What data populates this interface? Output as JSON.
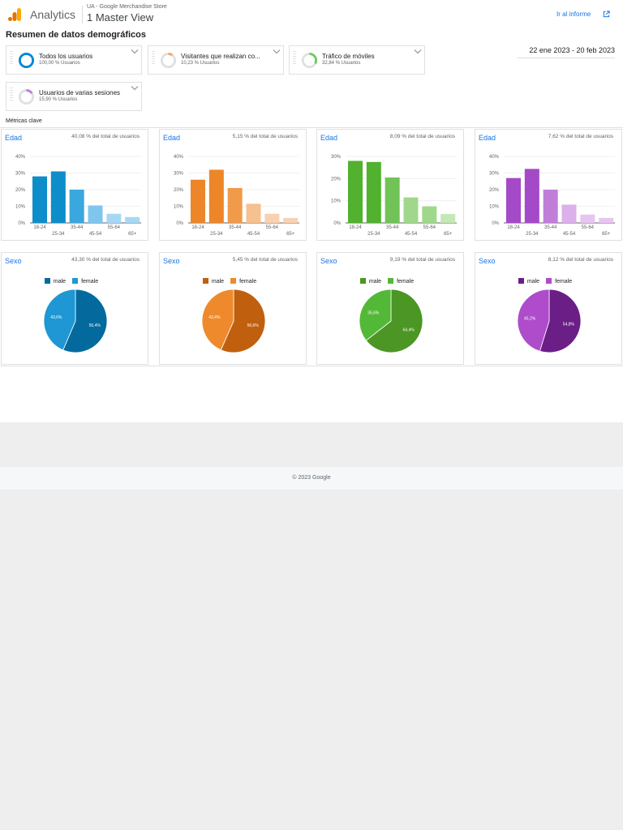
{
  "header": {
    "brand": "Analytics",
    "account": "UA - Google Merchandise Store",
    "view": "1 Master View",
    "report_link": "Ir al informe",
    "logo_icon": "analytics-logo-icon",
    "external_icon": "open-in-new-icon"
  },
  "page": {
    "title": "Resumen de datos demográficos",
    "date_range": "22 ene 2023 - 20 feb 2023",
    "metrics_label": "Métricas clave"
  },
  "segments": [
    {
      "name": "Todos los usuarios",
      "sub": "100,00 % Usuarios",
      "color": "#0288d1",
      "fraction": 1.0
    },
    {
      "name": "Visitantes que realizan co...",
      "sub": "10,23 % Usuarios",
      "color": "#f6a55c",
      "fraction": 0.1023
    },
    {
      "name": "Tráfico de móviles",
      "sub": "32,84 % Usuarios",
      "color": "#6ccb5f",
      "fraction": 0.3284
    },
    {
      "name": "Usuarios de varias sesiones",
      "sub": "15,90 % Usuarios",
      "color": "#c27ae0",
      "fraction": 0.159
    }
  ],
  "age_cards": [
    {
      "title": "Edad",
      "pct": "40,08 % del total de usuarios"
    },
    {
      "title": "Edad",
      "pct": "5,15 % del total de usuarios"
    },
    {
      "title": "Edad",
      "pct": "8,09 % del total de usuarios"
    },
    {
      "title": "Edad",
      "pct": "7,62 % del total de usuarios"
    }
  ],
  "sex_cards": [
    {
      "title": "Sexo",
      "pct": "43,30 % del total de usuarios"
    },
    {
      "title": "Sexo",
      "pct": "5,45 % del total de usuarios"
    },
    {
      "title": "Sexo",
      "pct": "9,19 % del total de usuarios"
    },
    {
      "title": "Sexo",
      "pct": "8,12 % del total de usuarios"
    }
  ],
  "legend_labels": {
    "male": "male",
    "female": "female"
  },
  "footer": {
    "copyright": "© 2023 Google"
  },
  "chart_data": [
    {
      "type": "bar",
      "title": "Edad",
      "categories": [
        "18-24",
        "25-34",
        "35-44",
        "45-54",
        "55-64",
        "65+"
      ],
      "values": [
        28,
        31,
        20,
        10.5,
        5.5,
        3.5
      ],
      "yticks": [
        "0%",
        "10%",
        "20%",
        "30%",
        "40%"
      ],
      "ylim": [
        0,
        40
      ],
      "colors": [
        "#0d8dc9",
        "#0d8dc9",
        "#3aa7de",
        "#7ec6ee",
        "#a6d8f4",
        "#a6d8f4"
      ]
    },
    {
      "type": "bar",
      "title": "Edad",
      "categories": [
        "18-24",
        "25-34",
        "35-44",
        "45-54",
        "55-64",
        "65+"
      ],
      "values": [
        26,
        32,
        21,
        11.5,
        5.5,
        3
      ],
      "yticks": [
        "0%",
        "10%",
        "20%",
        "30%",
        "40%"
      ],
      "ylim": [
        0,
        40
      ],
      "colors": [
        "#ed8628",
        "#ed8628",
        "#f19a4a",
        "#f6c08f",
        "#f8d2b0",
        "#f8d2b0"
      ]
    },
    {
      "type": "bar",
      "title": "Edad",
      "categories": [
        "18-24",
        "25-34",
        "35-44",
        "45-54",
        "55-64",
        "65+"
      ],
      "values": [
        28,
        27.5,
        20.5,
        11.5,
        7.5,
        4
      ],
      "yticks": [
        "0%",
        "10%",
        "20%",
        "30%"
      ],
      "ylim": [
        0,
        30
      ],
      "colors": [
        "#52b12f",
        "#52b12f",
        "#72c357",
        "#a0d88b",
        "#a0d88b",
        "#c4e7b6"
      ]
    },
    {
      "type": "bar",
      "title": "Edad",
      "categories": [
        "18-24",
        "25-34",
        "35-44",
        "45-54",
        "55-64",
        "65+"
      ],
      "values": [
        27,
        32.5,
        20,
        11,
        5,
        3
      ],
      "yticks": [
        "0%",
        "10%",
        "20%",
        "30%",
        "40%"
      ],
      "ylim": [
        0,
        40
      ],
      "colors": [
        "#a449c7",
        "#a449c7",
        "#c07ed9",
        "#dcb0eb",
        "#e6c6f0",
        "#e6c6f0"
      ]
    },
    {
      "type": "pie",
      "title": "Sexo",
      "series": [
        {
          "name": "male",
          "value": 56.4,
          "label": "56,4%",
          "color": "#046a9e"
        },
        {
          "name": "female",
          "value": 43.6,
          "label": "43,6%",
          "color": "#1e97d4"
        }
      ]
    },
    {
      "type": "pie",
      "title": "Sexo",
      "series": [
        {
          "name": "male",
          "value": 56.6,
          "label": "56,6%",
          "color": "#c0600f"
        },
        {
          "name": "female",
          "value": 43.4,
          "label": "43,4%",
          "color": "#ee8a2c"
        }
      ]
    },
    {
      "type": "pie",
      "title": "Sexo",
      "series": [
        {
          "name": "male",
          "value": 64.4,
          "label": "64,4%",
          "color": "#4b9624"
        },
        {
          "name": "female",
          "value": 35.6,
          "label": "35,6%",
          "color": "#54b837"
        }
      ]
    },
    {
      "type": "pie",
      "title": "Sexo",
      "series": [
        {
          "name": "male",
          "value": 54.8,
          "label": "54,8%",
          "color": "#6a1e86"
        },
        {
          "name": "female",
          "value": 45.2,
          "label": "45,2%",
          "color": "#ae4ccb"
        }
      ]
    }
  ]
}
